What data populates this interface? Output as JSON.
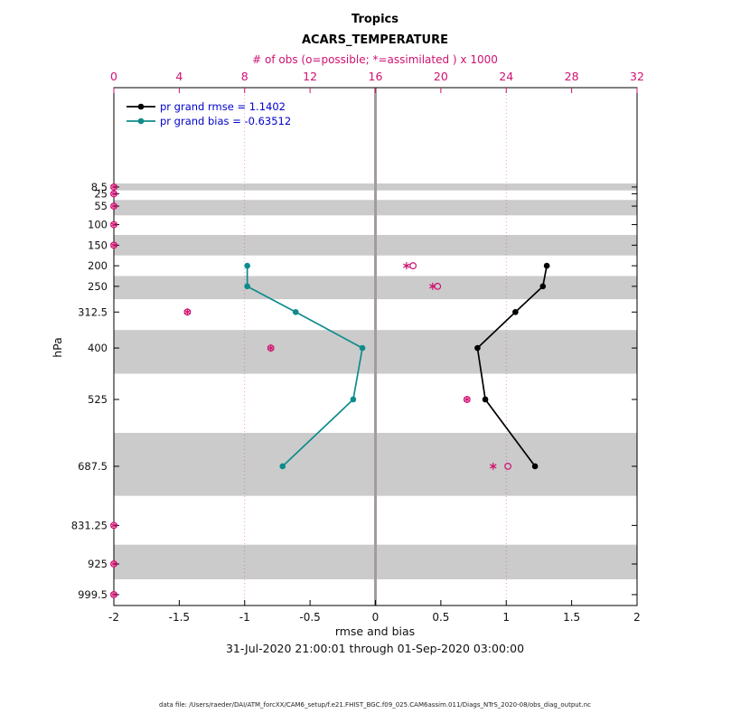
{
  "figure": {
    "date_range": "31-Jul-2020 21:00:01 through 01-Sep-2020 03:00:00",
    "data_file_note": "data file: /Users/raeder/DAI/ATM_forcXX/CAM6_setup/f.e21.FHIST_BGC.f09_025.CAM6assim.011/Diags_NTrS_2020-08/obs_diag_output.nc"
  },
  "chart_data": {
    "type": "line",
    "title": "Tropics",
    "subtitle": "ACARS_TEMPERATURE",
    "top_axis": {
      "label": "# of obs (o=possible; *=assimilated ) x 1000",
      "range": [
        0,
        32
      ],
      "ticks": [
        0,
        4,
        8,
        12,
        16,
        20,
        24,
        28,
        32
      ],
      "color": "#cf1271"
    },
    "bottom_axis": {
      "label": "rmse and bias",
      "range": [
        -2,
        2
      ],
      "ticks": [
        -2,
        -1.5,
        -1,
        -0.5,
        0,
        0.5,
        1,
        1.5,
        2
      ]
    },
    "y_axis": {
      "label": "hPa",
      "tick_levels": [
        8.5,
        25,
        55,
        100,
        150,
        200,
        250,
        312.5,
        400,
        525,
        687.5,
        831.25,
        925,
        999.5
      ],
      "direction": "pressure-increasing-downward"
    },
    "gray_bands_hpa": [
      [
        0,
        16.75
      ],
      [
        40,
        77.5
      ],
      [
        125,
        175
      ],
      [
        225,
        281.25
      ],
      [
        356.25,
        462.5
      ],
      [
        606.25,
        759.375
      ],
      [
        878.125,
        962.25
      ]
    ],
    "band_color": "#cbcbcb",
    "zero_line_color": "#a39c9c",
    "legend_text_color": "#0000cc",
    "grid_counts": [
      8,
      16,
      24
    ],
    "series": [
      {
        "name": "pr grand rmse = 1.1402",
        "color": "#000000",
        "levels_hpa": [
          200,
          250,
          312.5,
          400,
          525,
          687.5
        ],
        "values": [
          1.31,
          1.28,
          1.07,
          0.78,
          0.84,
          1.22
        ]
      },
      {
        "name": "pr grand bias = -0.63512",
        "color": "#0f8b8b",
        "levels_hpa": [
          200,
          250,
          312.5,
          400,
          525,
          687.5
        ],
        "values": [
          -0.98,
          -0.98,
          -0.61,
          -0.1,
          -0.17,
          -0.71
        ]
      }
    ],
    "obs_counts": {
      "color": "#cf1271",
      "levels_hpa": [
        8.5,
        25,
        55,
        100,
        150,
        200,
        250,
        312.5,
        400,
        525,
        687.5,
        831.25,
        925,
        999.5
      ],
      "possible_x1000": [
        0,
        0,
        0,
        0,
        0,
        18.3,
        19.8,
        4.5,
        9.6,
        21.6,
        24.1,
        0,
        0,
        0
      ],
      "assimilated_x1000": [
        0,
        0,
        0,
        0,
        0,
        17.9,
        19.5,
        4.5,
        9.6,
        21.6,
        23.2,
        0,
        0,
        0
      ]
    }
  }
}
